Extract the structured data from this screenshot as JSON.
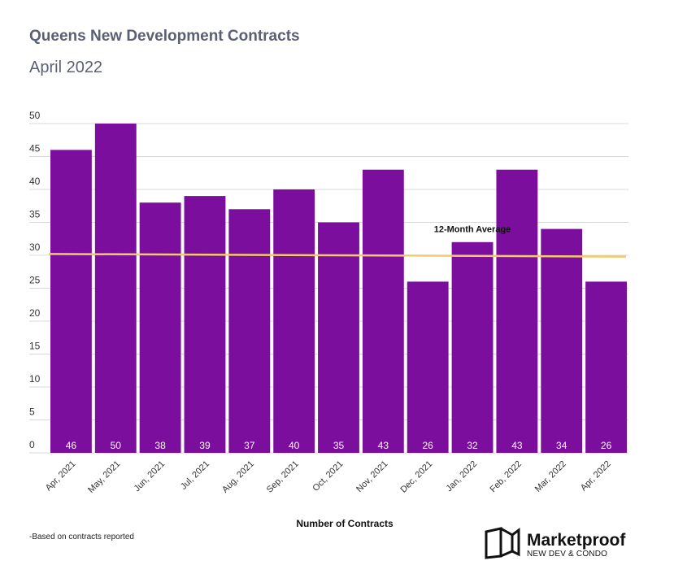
{
  "header": {
    "title": "Queens New Development Contracts",
    "subtitle": "April 2022"
  },
  "footnote": "-Based on contracts reported",
  "logo": {
    "name": "Marketproof",
    "tagline": "NEW DEV & CONDO",
    "icon": "marketproof-logo-icon"
  },
  "colors": {
    "bar": "#7b0e9c",
    "average_line": "#f5c96a",
    "grid": "#d9d9d9",
    "bar_label": "#ffffff",
    "title": "#5b5f73"
  },
  "chart_data": {
    "type": "bar",
    "title": "Queens New Development Contracts",
    "subtitle": "April 2022",
    "xlabel": "Number of Contracts",
    "ylabel": "",
    "ylim": [
      0,
      50
    ],
    "yticks": [
      0,
      5,
      10,
      15,
      20,
      25,
      30,
      35,
      40,
      45,
      50
    ],
    "grid": true,
    "categories": [
      "Apr, 2021",
      "May, 2021",
      "Jun, 2021",
      "Jul, 2021",
      "Aug, 2021",
      "Sep, 2021",
      "Oct, 2021",
      "Nov, 2021",
      "Dec, 2021",
      "Jan, 2022",
      "Feb, 2022",
      "Mar, 2022",
      "Apr, 2022"
    ],
    "values": [
      46,
      50,
      38,
      39,
      37,
      40,
      35,
      43,
      26,
      32,
      43,
      34,
      26
    ],
    "average_line": {
      "label": "12-Month Average",
      "start": 30.2,
      "end": 29.8
    }
  }
}
